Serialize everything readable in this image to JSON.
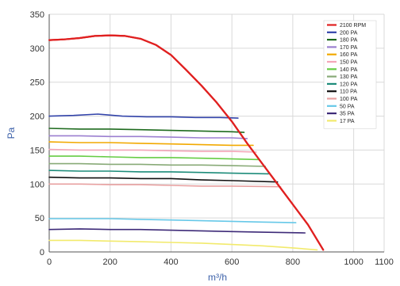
{
  "chart_data": {
    "type": "line",
    "title": "",
    "xlabel": "m³/h",
    "ylabel": "Pa",
    "xlim": [
      0,
      1100
    ],
    "ylim": [
      0,
      350
    ],
    "xticks": [
      0,
      200,
      400,
      600,
      800,
      1000,
      1100
    ],
    "yticks": [
      0,
      50,
      100,
      150,
      200,
      250,
      300,
      350
    ],
    "grid": true,
    "legend_position": "top-right",
    "series": [
      {
        "name": "2100 RPM",
        "color": "#e02020",
        "points": [
          [
            0,
            312
          ],
          [
            50,
            313
          ],
          [
            100,
            315
          ],
          [
            150,
            318
          ],
          [
            200,
            319
          ],
          [
            250,
            318
          ],
          [
            300,
            314
          ],
          [
            350,
            305
          ],
          [
            400,
            290
          ],
          [
            450,
            268
          ],
          [
            500,
            245
          ],
          [
            550,
            220
          ],
          [
            600,
            192
          ],
          [
            650,
            160
          ],
          [
            700,
            130
          ],
          [
            750,
            100
          ],
          [
            800,
            70
          ],
          [
            850,
            40
          ],
          [
            900,
            3
          ]
        ]
      },
      {
        "name": "200 PA",
        "color": "#3344aa",
        "points": [
          [
            0,
            200
          ],
          [
            80,
            201
          ],
          [
            160,
            203
          ],
          [
            240,
            200
          ],
          [
            320,
            199
          ],
          [
            400,
            199
          ],
          [
            480,
            198
          ],
          [
            560,
            198
          ],
          [
            620,
            197
          ]
        ]
      },
      {
        "name": "180 PA",
        "color": "#1e6b1e",
        "points": [
          [
            0,
            182
          ],
          [
            100,
            181
          ],
          [
            200,
            181
          ],
          [
            300,
            180
          ],
          [
            400,
            179
          ],
          [
            500,
            178
          ],
          [
            600,
            177
          ],
          [
            640,
            176
          ]
        ]
      },
      {
        "name": "170 PA",
        "color": "#9b7fd0",
        "points": [
          [
            0,
            171
          ],
          [
            100,
            171
          ],
          [
            200,
            170
          ],
          [
            300,
            170
          ],
          [
            400,
            169
          ],
          [
            500,
            168
          ],
          [
            600,
            168
          ],
          [
            650,
            167
          ]
        ]
      },
      {
        "name": "160 PA",
        "color": "#f2a900",
        "points": [
          [
            0,
            162
          ],
          [
            100,
            161
          ],
          [
            200,
            161
          ],
          [
            300,
            160
          ],
          [
            400,
            159
          ],
          [
            500,
            158
          ],
          [
            600,
            157
          ],
          [
            670,
            157
          ]
        ]
      },
      {
        "name": "150 PA",
        "color": "#f4a6b8",
        "points": [
          [
            0,
            151
          ],
          [
            100,
            150
          ],
          [
            200,
            150
          ],
          [
            300,
            150
          ],
          [
            400,
            149
          ],
          [
            500,
            148
          ],
          [
            600,
            148
          ],
          [
            680,
            147
          ]
        ]
      },
      {
        "name": "140 PA",
        "color": "#66cc44",
        "points": [
          [
            0,
            141
          ],
          [
            100,
            141
          ],
          [
            200,
            140
          ],
          [
            300,
            139
          ],
          [
            400,
            139
          ],
          [
            500,
            138
          ],
          [
            600,
            137
          ],
          [
            690,
            136
          ]
        ]
      },
      {
        "name": "130 PA",
        "color": "#88aa77",
        "points": [
          [
            0,
            130
          ],
          [
            100,
            130
          ],
          [
            200,
            129
          ],
          [
            300,
            129
          ],
          [
            400,
            128
          ],
          [
            500,
            128
          ],
          [
            600,
            127
          ],
          [
            710,
            126
          ]
        ]
      },
      {
        "name": "120 PA",
        "color": "#1d8c7a",
        "points": [
          [
            0,
            120
          ],
          [
            100,
            119
          ],
          [
            200,
            119
          ],
          [
            300,
            118
          ],
          [
            400,
            118
          ],
          [
            500,
            117
          ],
          [
            600,
            116
          ],
          [
            720,
            115
          ]
        ]
      },
      {
        "name": "110 PA",
        "color": "#111111",
        "points": [
          [
            0,
            110
          ],
          [
            100,
            109
          ],
          [
            200,
            109
          ],
          [
            300,
            108
          ],
          [
            400,
            108
          ],
          [
            500,
            106
          ],
          [
            600,
            105
          ],
          [
            750,
            103
          ]
        ]
      },
      {
        "name": "100 PA",
        "color": "#e8a0a0",
        "points": [
          [
            0,
            100
          ],
          [
            100,
            100
          ],
          [
            200,
            99
          ],
          [
            300,
            99
          ],
          [
            400,
            98
          ],
          [
            500,
            97
          ],
          [
            600,
            97
          ],
          [
            760,
            96
          ]
        ]
      },
      {
        "name": "50 PA",
        "color": "#66c8e8",
        "points": [
          [
            0,
            49
          ],
          [
            100,
            49
          ],
          [
            200,
            49
          ],
          [
            300,
            48
          ],
          [
            400,
            47
          ],
          [
            500,
            46
          ],
          [
            600,
            45
          ],
          [
            700,
            44
          ],
          [
            810,
            43
          ]
        ]
      },
      {
        "name": "35 PA",
        "color": "#3d2a78",
        "points": [
          [
            0,
            33
          ],
          [
            100,
            34
          ],
          [
            200,
            33
          ],
          [
            300,
            33
          ],
          [
            400,
            32
          ],
          [
            500,
            31
          ],
          [
            600,
            30
          ],
          [
            700,
            29
          ],
          [
            840,
            28
          ]
        ]
      },
      {
        "name": "17 PA",
        "color": "#f2ea6c",
        "points": [
          [
            0,
            17
          ],
          [
            100,
            17
          ],
          [
            200,
            16
          ],
          [
            300,
            15
          ],
          [
            400,
            14
          ],
          [
            500,
            13
          ],
          [
            600,
            11
          ],
          [
            700,
            9
          ],
          [
            800,
            6
          ],
          [
            880,
            3
          ]
        ]
      }
    ]
  }
}
